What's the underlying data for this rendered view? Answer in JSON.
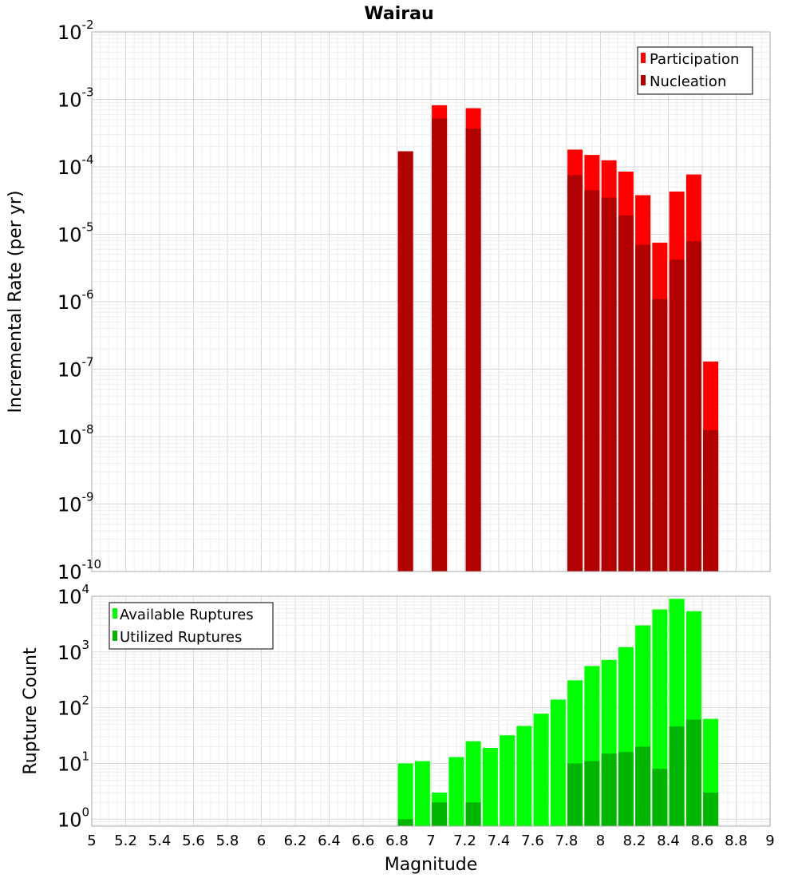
{
  "chart_data": [
    {
      "type": "bar",
      "title": "Wairau",
      "xlabel": "",
      "ylabel": "Incremental Rate (per yr)",
      "yscale": "log",
      "ylim": [
        1e-10,
        0.01
      ],
      "xlim": [
        5,
        9
      ],
      "legend_position": "top-right",
      "x": [
        6.85,
        7.05,
        7.25,
        7.85,
        7.95,
        8.05,
        8.15,
        8.25,
        8.35,
        8.45,
        8.55,
        8.65
      ],
      "series": [
        {
          "name": "Participation",
          "color": "#ff0000",
          "values": [
            0.00017,
            0.00082,
            0.00074,
            0.00018,
            0.00015,
            0.000125,
            8.5e-05,
            3.8e-05,
            7.5e-06,
            4.3e-05,
            7.7e-05,
            1.3e-07
          ]
        },
        {
          "name": "Nucleation",
          "color": "#b00000",
          "values": [
            0.00017,
            0.00052,
            0.00037,
            7.5e-05,
            4.5e-05,
            3.5e-05,
            1.9e-05,
            7e-06,
            1.1e-06,
            4.2e-06,
            7.9e-06,
            1.25e-08
          ]
        }
      ]
    },
    {
      "type": "bar",
      "title": "",
      "xlabel": "Magnitude",
      "ylabel": "Rupture Count",
      "yscale": "log",
      "ylim": [
        0.75,
        10000
      ],
      "xlim": [
        5,
        9
      ],
      "legend_position": "top-left",
      "x": [
        6.85,
        6.95,
        7.05,
        7.15,
        7.25,
        7.35,
        7.45,
        7.55,
        7.65,
        7.75,
        7.85,
        7.95,
        8.05,
        8.15,
        8.25,
        8.35,
        8.45,
        8.55,
        8.65
      ],
      "series": [
        {
          "name": "Available Ruptures",
          "color": "#00ff00",
          "values": [
            10,
            11,
            3,
            13,
            25,
            19,
            32,
            47,
            78,
            140,
            310,
            560,
            720,
            1220,
            3000,
            5800,
            9000,
            5400,
            63
          ]
        },
        {
          "name": "Utilized Ruptures",
          "color": "#00b400",
          "values": [
            1,
            0,
            2,
            0,
            2,
            0,
            0,
            0,
            0,
            0,
            10,
            11,
            15,
            16,
            20,
            8,
            46,
            61,
            3
          ]
        }
      ]
    }
  ],
  "x_ticks": [
    "5",
    "5.2",
    "5.4",
    "5.6",
    "5.8",
    "6",
    "6.2",
    "6.4",
    "6.6",
    "6.8",
    "7",
    "7.2",
    "7.4",
    "7.6",
    "7.8",
    "8",
    "8.2",
    "8.4",
    "8.6",
    "8.8",
    "9"
  ],
  "top_y_ticks": [
    {
      "base": "10",
      "exp": "-2"
    },
    {
      "base": "10",
      "exp": "-3"
    },
    {
      "base": "10",
      "exp": "-4"
    },
    {
      "base": "10",
      "exp": "-5"
    },
    {
      "base": "10",
      "exp": "-6"
    },
    {
      "base": "10",
      "exp": "-7"
    },
    {
      "base": "10",
      "exp": "-8"
    },
    {
      "base": "10",
      "exp": "-9"
    },
    {
      "base": "10",
      "exp": "-10"
    }
  ],
  "bottom_y_ticks": [
    {
      "base": "10",
      "exp": "4"
    },
    {
      "base": "10",
      "exp": "3"
    },
    {
      "base": "10",
      "exp": "2"
    },
    {
      "base": "10",
      "exp": "1"
    },
    {
      "base": "10",
      "exp": "0"
    }
  ]
}
